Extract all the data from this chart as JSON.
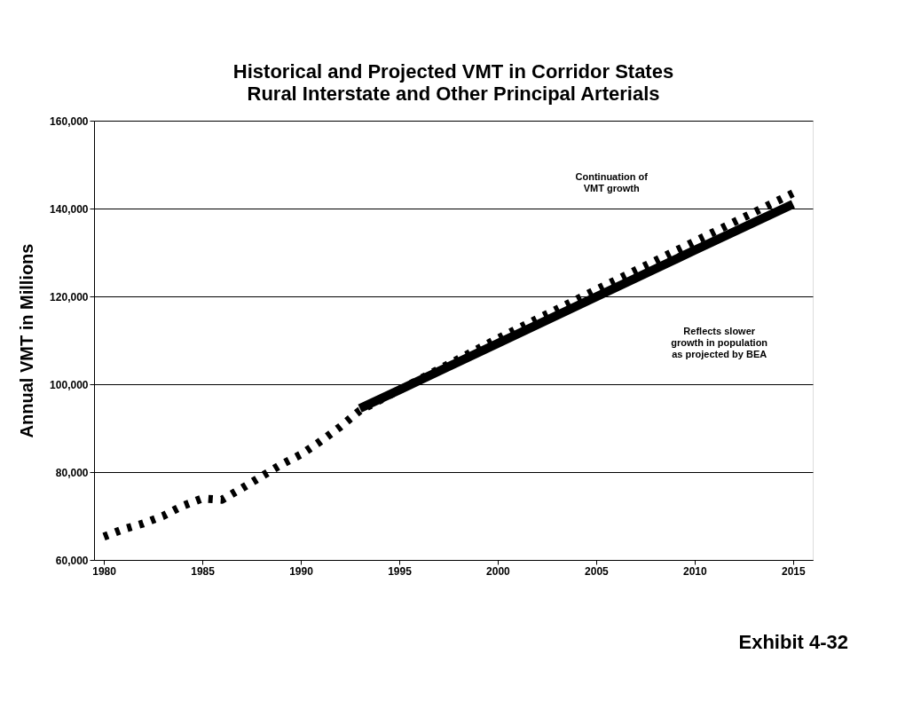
{
  "chart_data": {
    "type": "line",
    "title": "Historical and Projected VMT in Corridor States",
    "subtitle": "Rural Interstate and Other Principal Arterials",
    "ylabel": "Annual VMT in Millions",
    "series": [
      {
        "color": "#000000",
        "line_style": "dashed",
        "x": [
          1980,
          1981,
          1982,
          1983,
          1984,
          1985,
          1986,
          1987,
          1988,
          1989,
          1990,
          1991,
          1992,
          1993,
          2000,
          2005,
          2010,
          2015
        ],
        "values": [
          65300,
          67000,
          68300,
          70000,
          72300,
          74000,
          73700,
          76300,
          79000,
          81700,
          84000,
          87000,
          90300,
          94000,
          110400,
          121500,
          132500,
          143500
        ]
      },
      {
        "color": "#000000",
        "line_style": "solid",
        "x": [
          1993,
          1995,
          2000,
          2005,
          2010,
          2015
        ],
        "values": [
          94500,
          98700,
          109300,
          119900,
          130500,
          141000
        ]
      }
    ],
    "xlim": [
      1979.5,
      2016
    ],
    "xticks": [
      1980,
      1985,
      1990,
      1995,
      2000,
      2005,
      2010,
      2015
    ],
    "ylim": [
      60000,
      160000
    ],
    "yticks": [
      {
        "value": 60000,
        "label": "60,000"
      },
      {
        "value": 80000,
        "label": "80,000"
      },
      {
        "value": 100000,
        "label": "100,000"
      },
      {
        "value": 120000,
        "label": "120,000"
      },
      {
        "value": 140000,
        "label": "140,000"
      },
      {
        "value": 160000,
        "label": "160,000"
      }
    ],
    "grid": "y",
    "marker": "none",
    "annotations": [
      "Continuation of\nVMT growth",
      "Reflects slower\ngrowth in population\nas projected by BEA",
      "Exhibit 4-32"
    ]
  }
}
